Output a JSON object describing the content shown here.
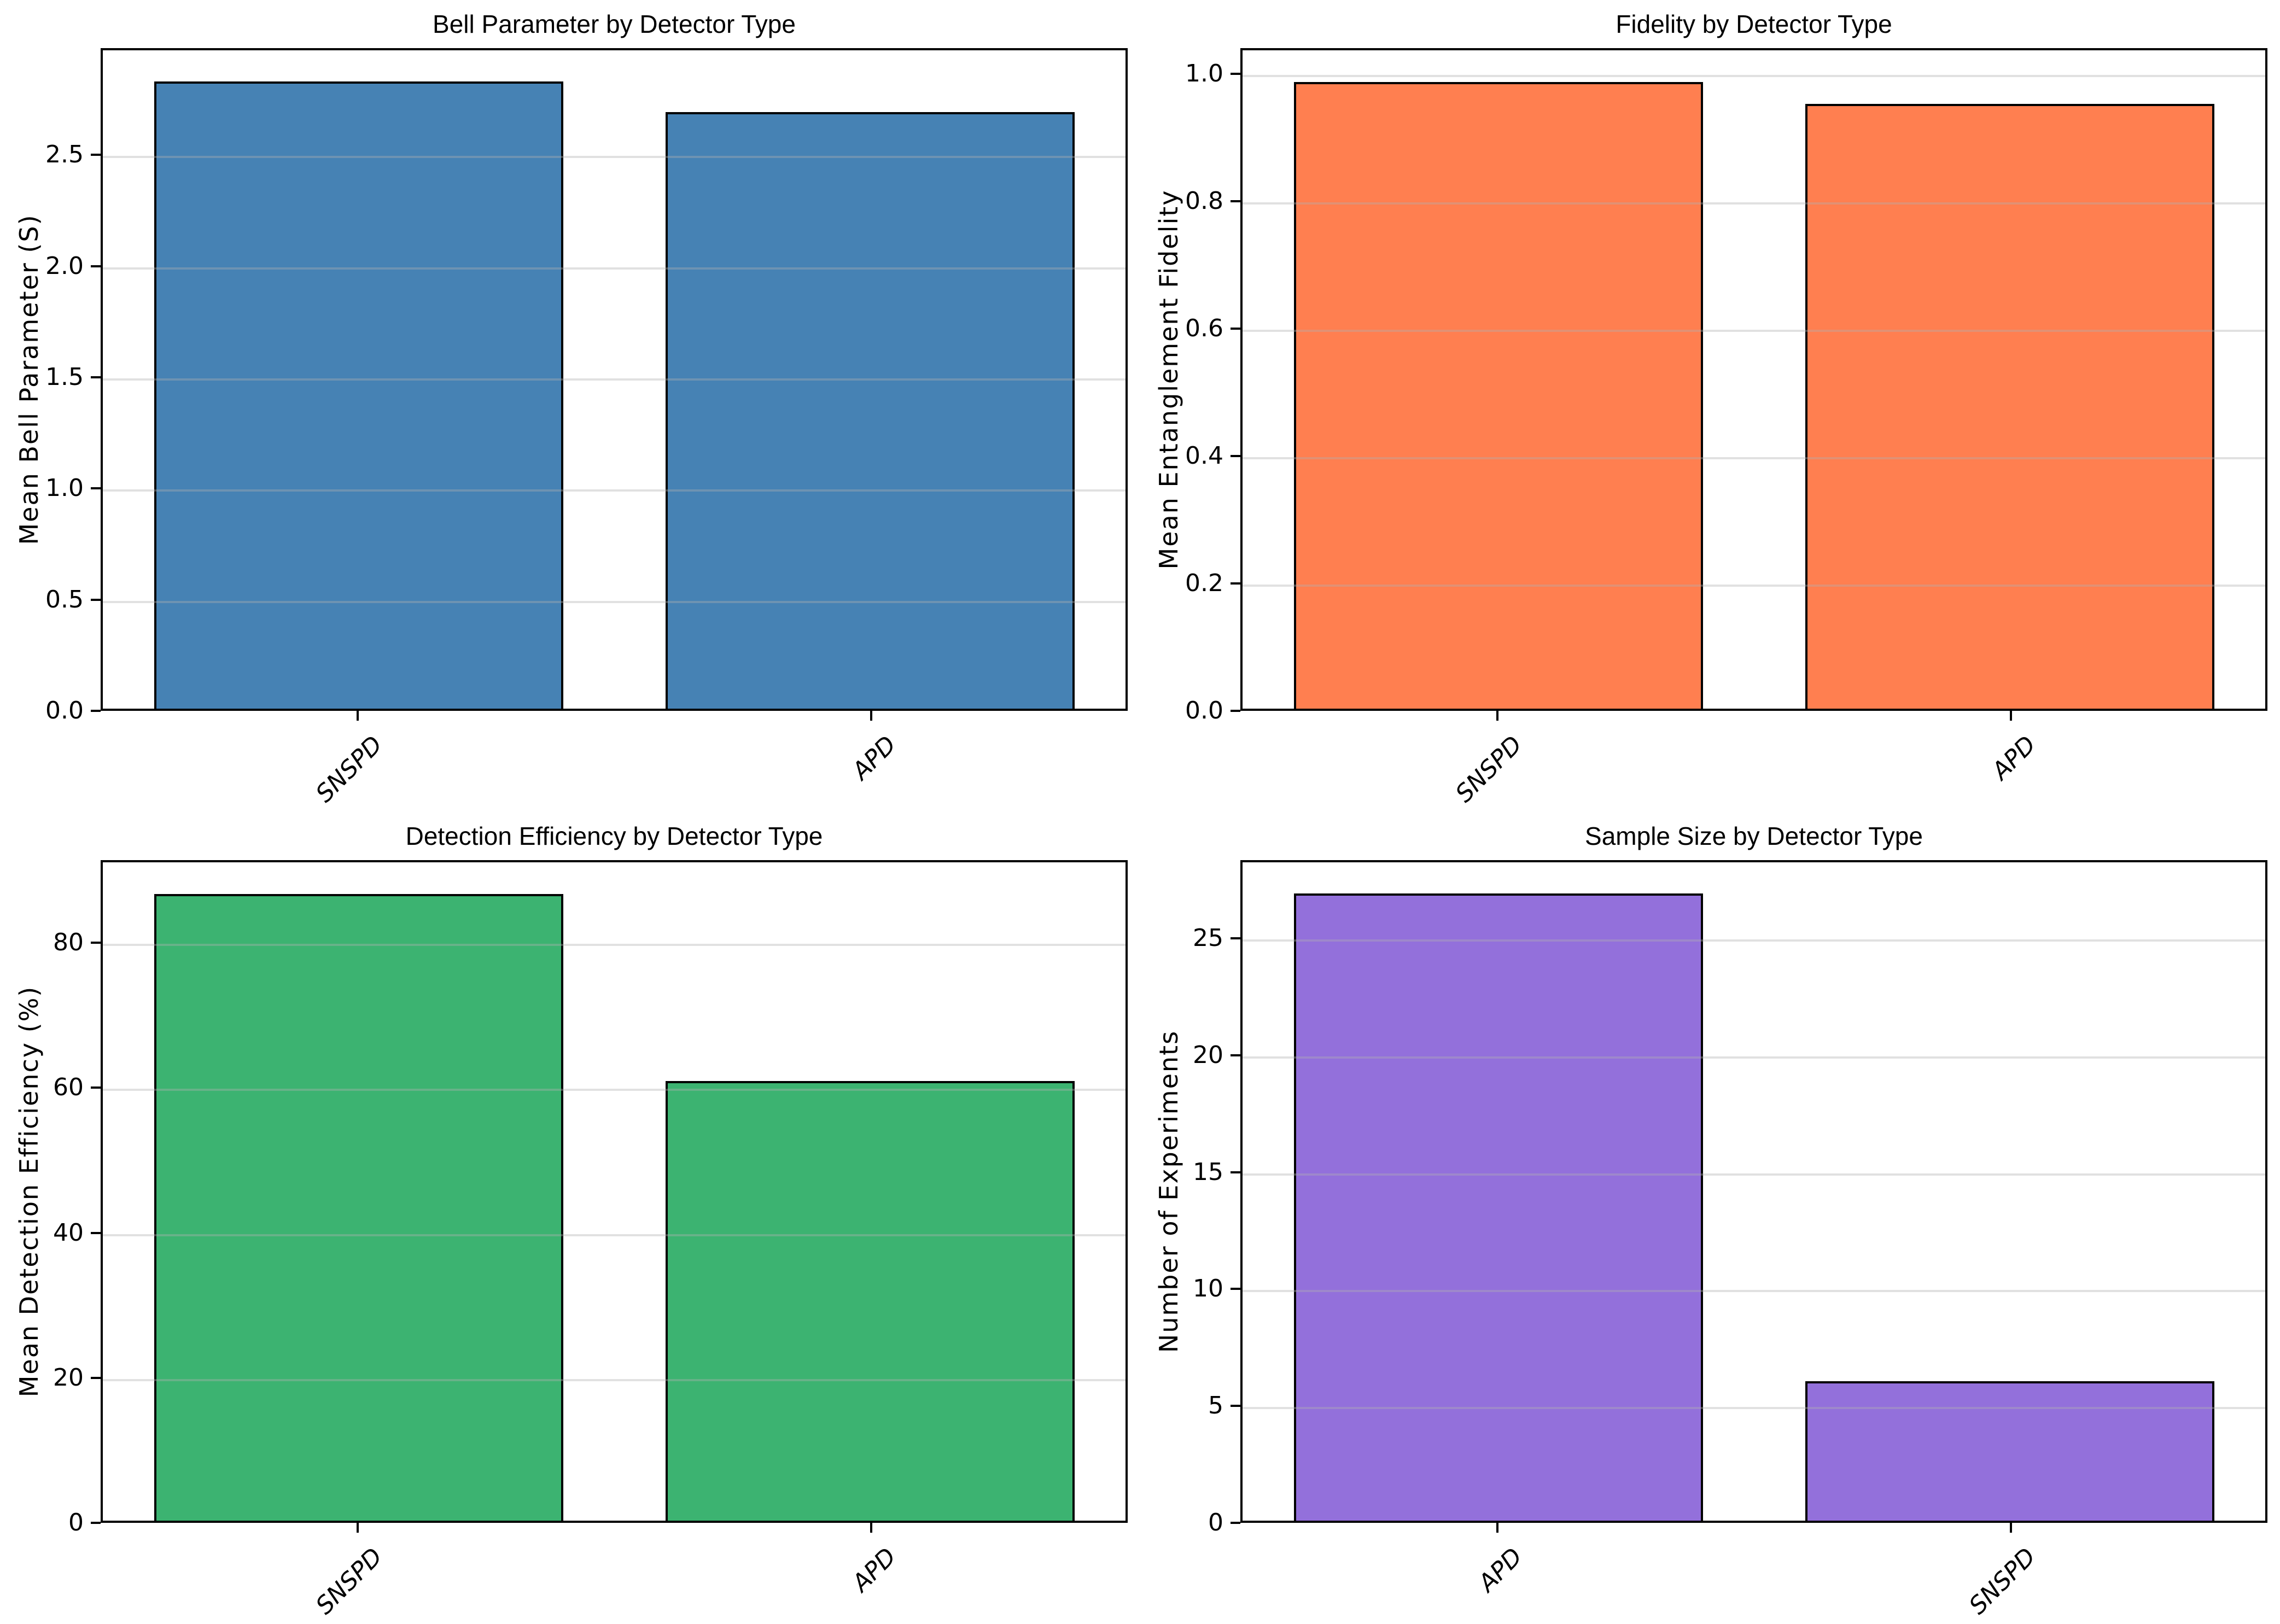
{
  "figure": {
    "background_color": "#ffffff",
    "spine_color": "#000000",
    "bar_edge_color": "#000000",
    "grid_color": "#b0b0b0",
    "layout": "2x2 grid of bar charts"
  },
  "chart_data": [
    {
      "type": "bar",
      "title": "Bell Parameter by Detector Type",
      "ylabel": "Mean Bell Parameter (S)",
      "xlabel": "",
      "categories": [
        "SNSPD",
        "APD"
      ],
      "values": [
        2.84,
        2.7
      ],
      "bar_color": "#4682B4",
      "bar_color_name": "steelblue",
      "ytick_values": [
        0.0,
        0.5,
        1.0,
        1.5,
        2.0,
        2.5
      ],
      "ytick_labels": [
        "0.0",
        "0.5",
        "1.0",
        "1.5",
        "2.0",
        "2.5"
      ],
      "ylim": [
        0,
        2.98
      ],
      "grid": "horizontal, drawn faint over bars",
      "legend": "none"
    },
    {
      "type": "bar",
      "title": "Fidelity by Detector Type",
      "ylabel": "Mean Entanglement Fidelity",
      "xlabel": "",
      "categories": [
        "SNSPD",
        "APD"
      ],
      "values": [
        0.99,
        0.955
      ],
      "bar_color": "#FF7F50",
      "bar_color_name": "coral",
      "ytick_values": [
        0.0,
        0.2,
        0.4,
        0.6,
        0.8,
        1.0
      ],
      "ytick_labels": [
        "0.0",
        "0.2",
        "0.4",
        "0.6",
        "0.8",
        "1.0"
      ],
      "ylim": [
        0,
        1.04
      ],
      "grid": "horizontal, drawn faint over bars",
      "legend": "none"
    },
    {
      "type": "bar",
      "title": "Detection Efficiency by Detector Type",
      "ylabel": "Mean Detection Efficiency (%)",
      "xlabel": "",
      "categories": [
        "SNSPD",
        "APD"
      ],
      "values": [
        87,
        61
      ],
      "bar_color": "#3CB371",
      "bar_color_name": "mediumseagreen",
      "ytick_values": [
        0,
        20,
        40,
        60,
        80
      ],
      "ytick_labels": [
        "0",
        "20",
        "40",
        "60",
        "80"
      ],
      "ylim": [
        0,
        91.4
      ],
      "grid": "horizontal, drawn faint over bars",
      "legend": "none"
    },
    {
      "type": "bar",
      "title": "Sample Size by Detector Type",
      "ylabel": "Number of Experiments",
      "xlabel": "",
      "categories": [
        "APD",
        "SNSPD"
      ],
      "values": [
        27,
        6
      ],
      "bar_color": "#9370DB",
      "bar_color_name": "mediumpurple",
      "ytick_values": [
        0,
        5,
        10,
        15,
        20,
        25
      ],
      "ytick_labels": [
        "0",
        "5",
        "10",
        "15",
        "20",
        "25"
      ],
      "ylim": [
        0,
        28.35
      ],
      "grid": "horizontal, drawn faint over bars",
      "legend": "none"
    }
  ]
}
